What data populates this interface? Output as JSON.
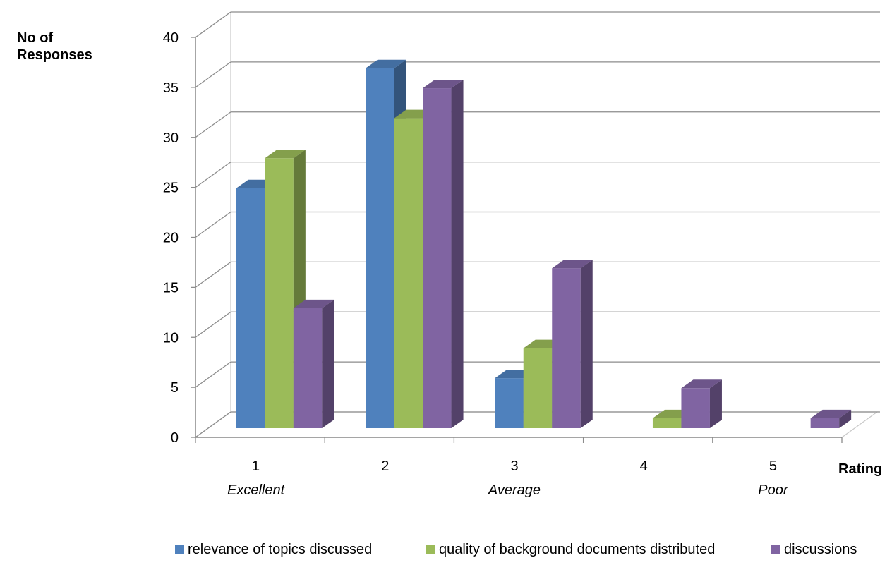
{
  "chart_data": {
    "type": "bar",
    "title": "",
    "ylabel": "No of\nResponses",
    "xlabel": "Rating",
    "ylim": [
      0,
      40
    ],
    "yticks": [
      0,
      5,
      10,
      15,
      20,
      25,
      30,
      35,
      40
    ],
    "grid": true,
    "legend_position": "bottom",
    "categories": [
      "1",
      "2",
      "3",
      "4",
      "5"
    ],
    "category_sublabels": [
      "Excellent",
      "",
      "Average",
      "",
      "Poor"
    ],
    "series": [
      {
        "name": "relevance of topics discussed",
        "color": "#4F81BD",
        "values": [
          24,
          36,
          5,
          0,
          0
        ]
      },
      {
        "name": "quality of background documents distributed",
        "color": "#9BBB59",
        "values": [
          27,
          31,
          8,
          1,
          0
        ]
      },
      {
        "name": "discussions",
        "color": "#8064A2",
        "values": [
          12,
          34,
          16,
          4,
          1
        ]
      }
    ]
  }
}
